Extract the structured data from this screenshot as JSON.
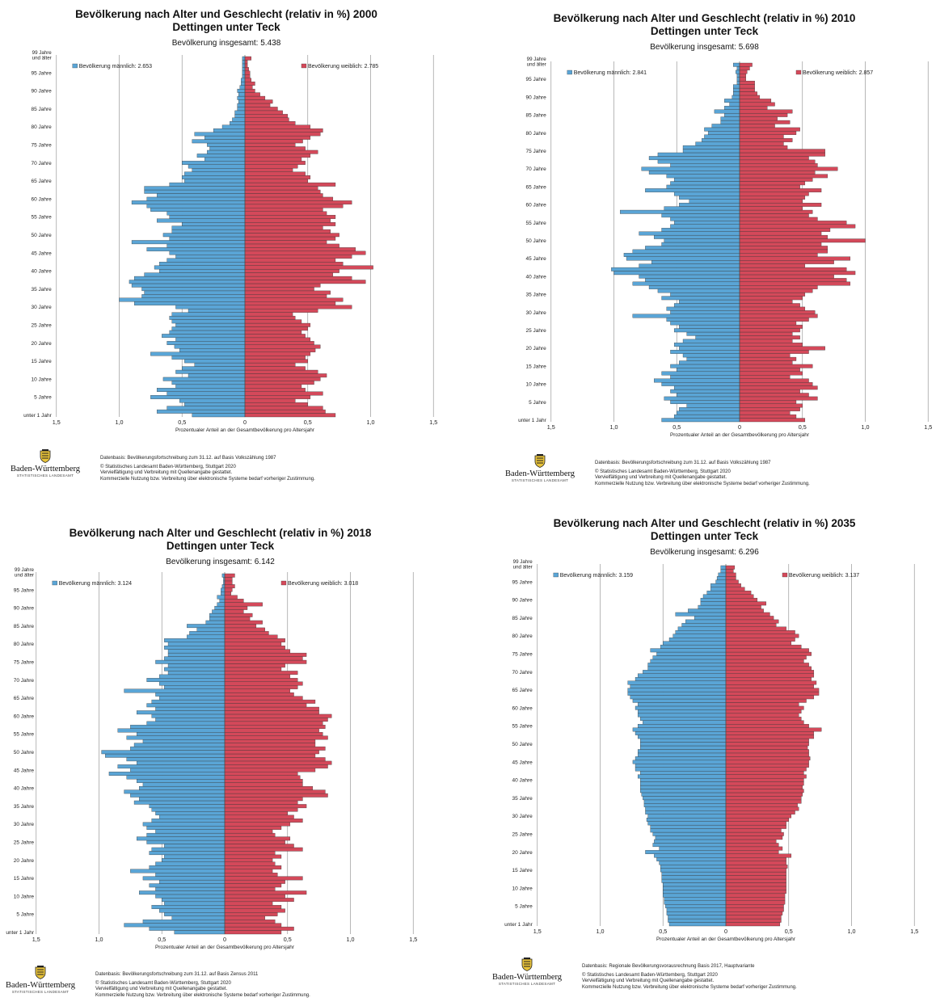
{
  "chart_data": [
    {
      "type": "bar",
      "subtype": "population-pyramid",
      "title": "Bevölkerung nach Alter und Geschlecht (relativ in %) 2000",
      "subtitle": "Dettingen unter Teck",
      "total": "Bevölkerung insgesamt: 5.438",
      "legend_male": "Bevölkerung männlich: 2.653",
      "legend_female": "Bevölkerung weiblich: 2.785",
      "xlabel": "Prozentualer Anteil an der Gesamtbevölkerung pro Altersjahr",
      "xticks": [
        "1,5",
        "1,0",
        "0,5",
        "0",
        "0,5",
        "1,0",
        "1,5"
      ],
      "yticks": [
        "99 Jahre und älter",
        "95 Jahre",
        "90 Jahre",
        "85 Jahre",
        "80 Jahre",
        "75 Jahre",
        "70 Jahre",
        "65 Jahre",
        "60 Jahre",
        "55 Jahre",
        "50 Jahre",
        "45 Jahre",
        "40 Jahre",
        "35 Jahre",
        "30 Jahre",
        "25 Jahre",
        "20 Jahre",
        "15 Jahre",
        "10 Jahre",
        "5 Jahre",
        "unter 1 Jahr"
      ],
      "xlim": [
        -1.5,
        1.5
      ],
      "ages": "0-99",
      "male": [
        0.42,
        0.7,
        0.62,
        0.48,
        0.52,
        0.75,
        0.62,
        0.7,
        0.55,
        0.58,
        0.65,
        0.45,
        0.55,
        0.5,
        0.4,
        0.48,
        0.58,
        0.75,
        0.52,
        0.56,
        0.62,
        0.55,
        0.66,
        0.6,
        0.58,
        0.55,
        0.58,
        0.6,
        0.58,
        0.45,
        0.55,
        0.88,
        1.0,
        0.82,
        0.8,
        0.82,
        0.9,
        0.92,
        0.88,
        0.8,
        0.68,
        0.72,
        0.68,
        0.62,
        0.55,
        0.6,
        0.78,
        0.62,
        0.9,
        0.6,
        0.65,
        0.58,
        0.58,
        0.5,
        0.7,
        0.6,
        0.62,
        0.75,
        0.78,
        0.9,
        0.78,
        0.7,
        0.8,
        0.8,
        0.6,
        0.48,
        0.5,
        0.48,
        0.42,
        0.45,
        0.5,
        0.32,
        0.38,
        0.3,
        0.28,
        0.3,
        0.42,
        0.32,
        0.4,
        0.25,
        0.18,
        0.12,
        0.1,
        0.08,
        0.08,
        0.06,
        0.06,
        0.05,
        0.06,
        0.05,
        0.06,
        0.04,
        0.03,
        0.03,
        0.02,
        0.02,
        0.02,
        0.02,
        0.02,
        0.02
      ],
      "female": [
        0.72,
        0.64,
        0.62,
        0.5,
        0.4,
        0.52,
        0.62,
        0.48,
        0.45,
        0.55,
        0.6,
        0.65,
        0.58,
        0.48,
        0.4,
        0.5,
        0.48,
        0.52,
        0.56,
        0.6,
        0.55,
        0.52,
        0.48,
        0.45,
        0.5,
        0.52,
        0.45,
        0.4,
        0.38,
        0.58,
        0.85,
        0.72,
        0.78,
        0.65,
        0.68,
        0.55,
        0.6,
        0.96,
        0.85,
        0.7,
        0.75,
        1.02,
        0.78,
        0.72,
        0.85,
        0.96,
        0.88,
        0.75,
        0.65,
        0.72,
        0.75,
        0.68,
        0.62,
        0.72,
        0.68,
        0.72,
        0.65,
        0.62,
        0.78,
        0.85,
        0.7,
        0.62,
        0.6,
        0.58,
        0.72,
        0.5,
        0.52,
        0.48,
        0.38,
        0.42,
        0.48,
        0.45,
        0.52,
        0.58,
        0.48,
        0.4,
        0.46,
        0.52,
        0.6,
        0.62,
        0.52,
        0.4,
        0.35,
        0.34,
        0.3,
        0.26,
        0.2,
        0.22,
        0.16,
        0.12,
        0.08,
        0.06,
        0.08,
        0.05,
        0.04,
        0.04,
        0.03,
        0.02,
        0.02,
        0.05
      ],
      "source_lines": [
        "Datenbasis: Bevölkerungsfortschreibung zum 31.12. auf Basis Volkszählung 1987",
        "© Statistisches Landesamt Baden-Württemberg, Stuttgart 2020",
        "Vervielfältigung und Verbreitung mit Quellenangabe gestattet.",
        "Kommerzielle Nutzung bzw. Verbreitung über elektronische Systeme bedarf vorheriger Zustimmung."
      ]
    },
    {
      "type": "bar",
      "subtype": "population-pyramid",
      "title": "Bevölkerung nach Alter und Geschlecht (relativ in %) 2010",
      "subtitle": "Dettingen unter Teck",
      "total": "Bevölkerung insgesamt: 5.698",
      "legend_male": "Bevölkerung männlich: 2.841",
      "legend_female": "Bevölkerung weiblich: 2.857",
      "xlabel": "Prozentualer Anteil an der Gesamtbevölkerung pro Altersjahr",
      "xticks": [
        "1,5",
        "1,0",
        "0,5",
        "0",
        "0,5",
        "1,0",
        "1,5"
      ],
      "yticks": [
        "99 Jahre und älter",
        "95 Jahre",
        "90 Jahre",
        "85 Jahre",
        "80 Jahre",
        "75 Jahre",
        "70 Jahre",
        "65 Jahre",
        "60 Jahre",
        "55 Jahre",
        "50 Jahre",
        "45 Jahre",
        "40 Jahre",
        "35 Jahre",
        "30 Jahre",
        "25 Jahre",
        "20 Jahre",
        "15 Jahre",
        "10 Jahre",
        "5 Jahre",
        "unter 1 Jahr"
      ],
      "xlim": [
        -1.5,
        1.5
      ],
      "ages": "0-99",
      "male": [
        0.62,
        0.52,
        0.5,
        0.48,
        0.42,
        0.55,
        0.6,
        0.5,
        0.55,
        0.52,
        0.62,
        0.68,
        0.55,
        0.62,
        0.5,
        0.55,
        0.48,
        0.42,
        0.45,
        0.55,
        0.48,
        0.52,
        0.45,
        0.35,
        0.42,
        0.52,
        0.48,
        0.55,
        0.58,
        0.85,
        0.55,
        0.58,
        0.52,
        0.48,
        0.62,
        0.55,
        0.65,
        0.72,
        0.85,
        0.75,
        0.8,
        1.0,
        1.02,
        0.8,
        0.7,
        0.9,
        0.92,
        0.85,
        0.75,
        0.62,
        0.6,
        0.68,
        0.8,
        0.62,
        0.55,
        0.52,
        0.55,
        0.62,
        0.95,
        0.6,
        0.48,
        0.4,
        0.48,
        0.52,
        0.75,
        0.58,
        0.55,
        0.52,
        0.58,
        0.72,
        0.78,
        0.55,
        0.65,
        0.72,
        0.65,
        0.45,
        0.45,
        0.35,
        0.3,
        0.28,
        0.25,
        0.28,
        0.22,
        0.15,
        0.15,
        0.12,
        0.2,
        0.12,
        0.08,
        0.12,
        0.06,
        0.05,
        0.05,
        0.05,
        0.02,
        0.02,
        0.02,
        0.03,
        0.02,
        0.05
      ],
      "female": [
        0.52,
        0.45,
        0.4,
        0.48,
        0.5,
        0.45,
        0.62,
        0.55,
        0.48,
        0.62,
        0.58,
        0.55,
        0.4,
        0.5,
        0.48,
        0.58,
        0.42,
        0.45,
        0.4,
        0.55,
        0.68,
        0.5,
        0.42,
        0.48,
        0.42,
        0.48,
        0.5,
        0.45,
        0.55,
        0.62,
        0.6,
        0.52,
        0.48,
        0.42,
        0.5,
        0.52,
        0.58,
        0.62,
        0.88,
        0.85,
        0.75,
        0.92,
        0.85,
        0.52,
        0.75,
        0.88,
        0.62,
        0.7,
        0.7,
        0.65,
        1.0,
        0.7,
        0.65,
        0.72,
        0.92,
        0.85,
        0.62,
        0.55,
        0.58,
        0.5,
        0.65,
        0.5,
        0.52,
        0.55,
        0.65,
        0.48,
        0.52,
        0.58,
        0.7,
        0.6,
        0.78,
        0.62,
        0.6,
        0.55,
        0.68,
        0.68,
        0.38,
        0.35,
        0.42,
        0.35,
        0.45,
        0.48,
        0.28,
        0.4,
        0.3,
        0.38,
        0.42,
        0.22,
        0.28,
        0.25,
        0.16,
        0.14,
        0.12,
        0.12,
        0.12,
        0.05,
        0.05,
        0.06,
        0.08,
        0.1
      ],
      "source_lines": [
        "Datenbasis: Bevölkerungsfortschreibung zum 31.12. auf Basis Volkszählung 1987",
        "© Statistisches Landesamt Baden-Württemberg, Stuttgart 2020",
        "Vervielfältigung und Verbreitung mit Quellenangabe gestattet.",
        "Kommerzielle Nutzung bzw. Verbreitung über elektronische Systeme bedarf vorheriger Zustimmung."
      ]
    },
    {
      "type": "bar",
      "subtype": "population-pyramid",
      "title": "Bevölkerung nach Alter und Geschlecht (relativ in %) 2018",
      "subtitle": "Dettingen unter Teck",
      "total": "Bevölkerung insgesamt: 6.142",
      "legend_male": "Bevölkerung männlich: 3.124",
      "legend_female": "Bevölkerung weiblich: 3.018",
      "xlabel": "Prozentualer Anteil an der Gesamtbevölkerung pro Altersjahr",
      "xticks": [
        "1,5",
        "1,0",
        "0,5",
        "0",
        "0,5",
        "1,0",
        "1,5"
      ],
      "yticks": [
        "99 Jahre und älter",
        "95 Jahre",
        "90 Jahre",
        "85 Jahre",
        "80 Jahre",
        "75 Jahre",
        "70 Jahre",
        "65 Jahre",
        "60 Jahre",
        "55 Jahre",
        "50 Jahre",
        "45 Jahre",
        "40 Jahre",
        "35 Jahre",
        "30 Jahre",
        "25 Jahre",
        "20 Jahre",
        "15 Jahre",
        "10 Jahre",
        "5 Jahre",
        "unter 1 Jahr"
      ],
      "xlim": [
        -1.5,
        1.5
      ],
      "ages": "0-99",
      "male": [
        0.4,
        0.6,
        0.8,
        0.65,
        0.42,
        0.48,
        0.52,
        0.58,
        0.48,
        0.5,
        0.55,
        0.68,
        0.55,
        0.6,
        0.52,
        0.65,
        0.55,
        0.75,
        0.6,
        0.55,
        0.5,
        0.48,
        0.6,
        0.58,
        0.48,
        0.62,
        0.7,
        0.62,
        0.55,
        0.62,
        0.65,
        0.58,
        0.52,
        0.55,
        0.58,
        0.6,
        0.72,
        0.68,
        0.75,
        0.8,
        0.68,
        0.65,
        0.7,
        0.78,
        0.92,
        0.75,
        0.85,
        0.7,
        0.78,
        0.95,
        0.98,
        0.75,
        0.72,
        0.65,
        0.78,
        0.7,
        0.85,
        0.75,
        0.62,
        0.55,
        0.58,
        0.7,
        0.55,
        0.62,
        0.58,
        0.52,
        0.55,
        0.8,
        0.48,
        0.52,
        0.62,
        0.52,
        0.45,
        0.48,
        0.45,
        0.55,
        0.48,
        0.45,
        0.45,
        0.48,
        0.45,
        0.48,
        0.3,
        0.28,
        0.22,
        0.3,
        0.15,
        0.12,
        0.12,
        0.1,
        0.08,
        0.06,
        0.04,
        0.06,
        0.03,
        0.03,
        0.02,
        0.01,
        0.01,
        0.02
      ],
      "female": [
        0.45,
        0.55,
        0.45,
        0.4,
        0.32,
        0.42,
        0.48,
        0.45,
        0.38,
        0.55,
        0.48,
        0.65,
        0.4,
        0.45,
        0.48,
        0.62,
        0.42,
        0.38,
        0.45,
        0.4,
        0.38,
        0.45,
        0.4,
        0.62,
        0.55,
        0.48,
        0.52,
        0.4,
        0.38,
        0.45,
        0.52,
        0.62,
        0.55,
        0.5,
        0.58,
        0.65,
        0.58,
        0.62,
        0.82,
        0.8,
        0.7,
        0.62,
        0.62,
        0.6,
        0.58,
        0.72,
        0.82,
        0.85,
        0.8,
        0.72,
        0.75,
        0.8,
        0.72,
        0.72,
        0.82,
        0.78,
        0.75,
        0.8,
        0.78,
        0.82,
        0.85,
        0.75,
        0.75,
        0.65,
        0.72,
        0.62,
        0.55,
        0.52,
        0.58,
        0.62,
        0.58,
        0.52,
        0.58,
        0.45,
        0.48,
        0.65,
        0.62,
        0.65,
        0.52,
        0.48,
        0.45,
        0.48,
        0.42,
        0.35,
        0.32,
        0.25,
        0.3,
        0.2,
        0.22,
        0.15,
        0.18,
        0.3,
        0.15,
        0.1,
        0.05,
        0.06,
        0.08,
        0.06,
        0.06,
        0.08
      ],
      "source_lines": [
        "Datenbasis: Bevölkerungsfortschreibung zum 31.12. auf Basis Zensus 2011",
        "© Statistisches Landesamt Baden-Württemberg, Stuttgart 2020",
        "Vervielfältigung und Verbreitung mit Quellenangabe gestattet.",
        "Kommerzielle Nutzung bzw. Verbreitung über elektronische Systeme bedarf vorheriger Zustimmung."
      ]
    },
    {
      "type": "bar",
      "subtype": "population-pyramid",
      "title": "Bevölkerung nach Alter und Geschlecht (relativ in %) 2035",
      "subtitle": "Dettingen unter Teck",
      "total": "Bevölkerung insgesamt: 6.296",
      "legend_male": "Bevölkerung männlich: 3.159",
      "legend_female": "Bevölkerung weiblich: 3.137",
      "xlabel": "Prozentualer Anteil an der Gesamtbevölkerung pro Altersjahr",
      "xticks": [
        "1,5",
        "1,0",
        "0,5",
        "0",
        "0,5",
        "1,0",
        "1,5"
      ],
      "yticks": [
        "99 Jahre und älter",
        "95 Jahre",
        "90 Jahre",
        "85 Jahre",
        "80 Jahre",
        "75 Jahre",
        "70 Jahre",
        "65 Jahre",
        "60 Jahre",
        "55 Jahre",
        "50 Jahre",
        "45 Jahre",
        "40 Jahre",
        "35 Jahre",
        "30 Jahre",
        "25 Jahre",
        "20 Jahre",
        "15 Jahre",
        "10 Jahre",
        "5 Jahre",
        "unter 1 Jahr"
      ],
      "xlim": [
        -1.5,
        1.5
      ],
      "ages": "0-99",
      "male": [
        0.45,
        0.46,
        0.46,
        0.47,
        0.47,
        0.48,
        0.49,
        0.49,
        0.5,
        0.5,
        0.5,
        0.5,
        0.51,
        0.51,
        0.51,
        0.52,
        0.52,
        0.53,
        0.55,
        0.57,
        0.64,
        0.53,
        0.58,
        0.57,
        0.56,
        0.58,
        0.6,
        0.6,
        0.62,
        0.63,
        0.62,
        0.64,
        0.64,
        0.65,
        0.65,
        0.66,
        0.67,
        0.68,
        0.68,
        0.68,
        0.68,
        0.7,
        0.68,
        0.72,
        0.72,
        0.74,
        0.72,
        0.7,
        0.7,
        0.68,
        0.68,
        0.68,
        0.7,
        0.72,
        0.74,
        0.7,
        0.66,
        0.68,
        0.7,
        0.7,
        0.72,
        0.7,
        0.74,
        0.76,
        0.78,
        0.78,
        0.76,
        0.78,
        0.72,
        0.7,
        0.66,
        0.62,
        0.62,
        0.6,
        0.58,
        0.55,
        0.6,
        0.52,
        0.5,
        0.45,
        0.42,
        0.4,
        0.38,
        0.35,
        0.32,
        0.25,
        0.4,
        0.3,
        0.22,
        0.2,
        0.2,
        0.18,
        0.15,
        0.12,
        0.12,
        0.08,
        0.07,
        0.06,
        0.04,
        0.04
      ],
      "female": [
        0.43,
        0.44,
        0.44,
        0.45,
        0.46,
        0.46,
        0.47,
        0.47,
        0.47,
        0.48,
        0.48,
        0.48,
        0.48,
        0.48,
        0.48,
        0.48,
        0.49,
        0.48,
        0.48,
        0.52,
        0.42,
        0.45,
        0.42,
        0.4,
        0.45,
        0.46,
        0.44,
        0.48,
        0.48,
        0.5,
        0.52,
        0.55,
        0.58,
        0.57,
        0.6,
        0.6,
        0.61,
        0.62,
        0.61,
        0.62,
        0.62,
        0.64,
        0.62,
        0.64,
        0.66,
        0.66,
        0.67,
        0.66,
        0.66,
        0.65,
        0.66,
        0.66,
        0.7,
        0.7,
        0.76,
        0.66,
        0.62,
        0.6,
        0.58,
        0.6,
        0.62,
        0.58,
        0.64,
        0.7,
        0.74,
        0.74,
        0.7,
        0.72,
        0.68,
        0.7,
        0.7,
        0.68,
        0.66,
        0.62,
        0.64,
        0.68,
        0.66,
        0.6,
        0.52,
        0.55,
        0.58,
        0.55,
        0.48,
        0.4,
        0.42,
        0.38,
        0.35,
        0.3,
        0.28,
        0.32,
        0.25,
        0.22,
        0.2,
        0.15,
        0.12,
        0.1,
        0.08,
        0.08,
        0.06,
        0.07
      ],
      "source_lines": [
        "Datenbasis: Regionale Bevölkerungsvorausrechnung Basis 2017, Hauptvariante",
        "© Statistisches Landesamt Baden-Württemberg, Stuttgart 2020",
        "Vervielfältigung und Verbreitung mit Quellenangabe gestattet.",
        "Kommerzielle Nutzung bzw. Verbreitung über elektronische Systeme bedarf vorheriger Zustimmung."
      ]
    }
  ],
  "logo": {
    "name": "Baden-Württemberg",
    "sub": "STATISTISCHES LANDESAMT"
  },
  "colors": {
    "male": "#5aa5d6",
    "female": "#d4495a",
    "grid": "#999999",
    "bar_stroke": "#333333"
  }
}
